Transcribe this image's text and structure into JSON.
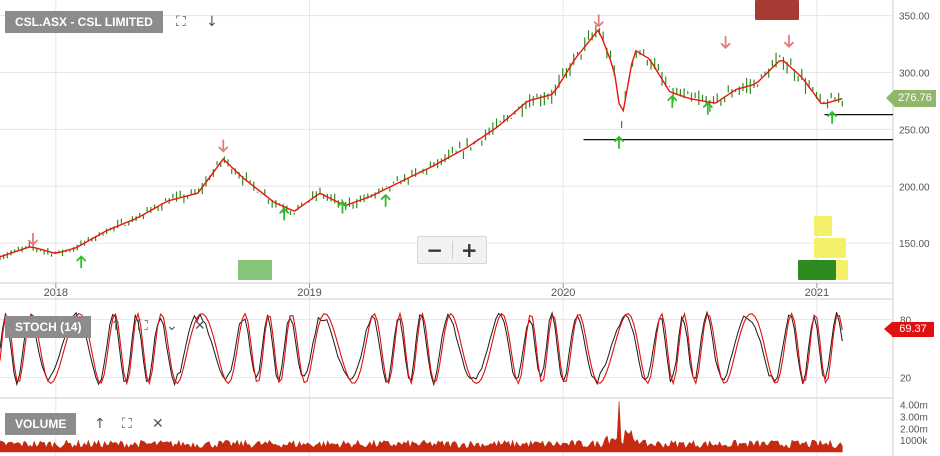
{
  "header": {
    "symbol_label": "CSL.ASX - CSL LIMITED",
    "fullscreen_icon": "fullscreen-icon",
    "download_icon": "download-arrow-icon"
  },
  "zoom": {
    "out_label": "−",
    "in_label": "+"
  },
  "price_marker": "276.76",
  "stoch_marker": "69.37",
  "stoch": {
    "label": "STOCH (14)",
    "icons": [
      "move-up-icon",
      "fullscreen-icon",
      "collapse-icon",
      "close-icon"
    ],
    "ticks": [
      {
        "value": 80,
        "label": "80"
      },
      {
        "value": 20,
        "label": "20"
      }
    ]
  },
  "volume": {
    "label": "VOLUME",
    "icons": [
      "move-up-icon",
      "fullscreen-icon",
      "close-icon"
    ],
    "ticks": [
      {
        "value": 4000000,
        "label": "4.00m"
      },
      {
        "value": 3000000,
        "label": "3.00m"
      },
      {
        "value": 2000000,
        "label": "2.00m"
      },
      {
        "value": 1000000,
        "label": "1000k"
      }
    ]
  },
  "colors": {
    "candle": "#2e8b20",
    "ma_line": "#e8160c",
    "stoch_k": "#1a1a1a",
    "stoch_d": "#e01010",
    "volume": "#c42b10",
    "sell_arrow": "#e87a7a",
    "buy_arrow": "#2bbf2b",
    "grid": "#e6e6e6"
  },
  "chart_data": {
    "type": "line",
    "title": "CSL.ASX - CSL LIMITED",
    "x_ticks": [
      {
        "t": 2018.0,
        "label": "2018"
      },
      {
        "t": 2019.0,
        "label": "2019"
      },
      {
        "t": 2020.0,
        "label": "2020"
      },
      {
        "t": 2021.0,
        "label": "2021"
      }
    ],
    "y_ticks": [
      {
        "value": 350,
        "label": "350.00"
      },
      {
        "value": 300,
        "label": "300.00"
      },
      {
        "value": 250,
        "label": "250.00"
      },
      {
        "value": 200,
        "label": "200.00"
      },
      {
        "value": 150,
        "label": "150.00"
      }
    ],
    "xlim": [
      2017.78,
      2021.3
    ],
    "ylim": [
      115,
      362
    ],
    "price_series": {
      "t": [
        2017.78,
        2017.9,
        2018.0,
        2018.08,
        2018.2,
        2018.32,
        2018.44,
        2018.56,
        2018.66,
        2018.74,
        2018.86,
        2018.94,
        2019.04,
        2019.14,
        2019.24,
        2019.34,
        2019.48,
        2019.62,
        2019.74,
        2019.86,
        2019.96,
        2020.05,
        2020.14,
        2020.2,
        2020.23,
        2020.28,
        2020.34,
        2020.42,
        2020.5,
        2020.6,
        2020.68,
        2020.76,
        2020.86,
        2020.94,
        2021.02,
        2021.1
      ],
      "close": [
        138,
        147,
        141,
        146,
        161,
        172,
        187,
        194,
        224,
        207,
        186,
        178,
        194,
        183,
        191,
        202,
        217,
        234,
        252,
        275,
        281,
        313,
        338,
        303,
        258,
        320,
        312,
        283,
        277,
        273,
        285,
        290,
        312,
        296,
        272,
        277
      ]
    },
    "support_lines": [
      {
        "value": 263,
        "from": 2021.03
      },
      {
        "value": 241,
        "from": 2020.08
      }
    ],
    "sell_signals": [
      {
        "t": 2017.91,
        "value": 154
      },
      {
        "t": 2018.66,
        "value": 236
      },
      {
        "t": 2020.14,
        "value": 346
      },
      {
        "t": 2020.64,
        "value": 327
      },
      {
        "t": 2020.89,
        "value": 328
      }
    ],
    "buy_signals": [
      {
        "t": 2018.1,
        "value": 133
      },
      {
        "t": 2018.9,
        "value": 175
      },
      {
        "t": 2019.13,
        "value": 181
      },
      {
        "t": 2019.3,
        "value": 187
      },
      {
        "t": 2020.22,
        "value": 238
      },
      {
        "t": 2020.43,
        "value": 274
      },
      {
        "t": 2020.57,
        "value": 268
      },
      {
        "t": 2021.06,
        "value": 260
      }
    ]
  }
}
